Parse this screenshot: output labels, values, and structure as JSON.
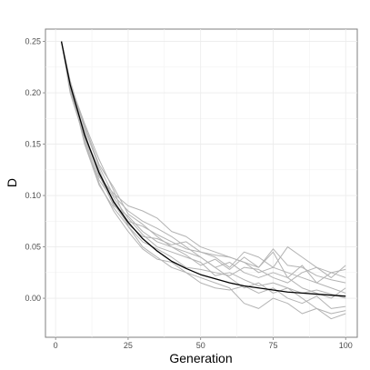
{
  "chart_data": {
    "type": "line",
    "title": "",
    "xlabel": "Generation",
    "ylabel": "D",
    "xlim": [
      -3.5,
      104
    ],
    "ylim": [
      -0.038,
      0.262
    ],
    "x_ticks": [
      0,
      25,
      50,
      75,
      100
    ],
    "x_tick_labels": [
      "0",
      "25",
      "50",
      "75",
      "100"
    ],
    "y_ticks": [
      0.0,
      0.05,
      0.1,
      0.15,
      0.2,
      0.25
    ],
    "y_tick_labels": [
      "0.00",
      "0.05",
      "0.10",
      "0.15",
      "0.20",
      "0.25"
    ],
    "grid": true,
    "legend": "none",
    "expected_curve": {
      "color": "#000000",
      "x": [
        2,
        5,
        10,
        15,
        20,
        25,
        30,
        35,
        40,
        45,
        50,
        55,
        60,
        65,
        70,
        75,
        80,
        85,
        90,
        95,
        100
      ],
      "y": [
        0.25,
        0.208,
        0.159,
        0.122,
        0.094,
        0.074,
        0.058,
        0.046,
        0.036,
        0.029,
        0.023,
        0.019,
        0.015,
        0.012,
        0.01,
        0.008,
        0.006,
        0.005,
        0.004,
        0.003,
        0.002
      ]
    },
    "simulations": {
      "color": "#b3b3b3",
      "x": [
        2,
        5,
        10,
        15,
        20,
        25,
        30,
        35,
        40,
        45,
        50,
        55,
        60,
        65,
        70,
        75,
        80,
        85,
        90,
        95,
        100
      ],
      "series": [
        {
          "values": [
            0.25,
            0.205,
            0.168,
            0.13,
            0.108,
            0.082,
            0.072,
            0.06,
            0.05,
            0.042,
            0.032,
            0.038,
            0.028,
            0.04,
            0.03,
            0.045,
            0.02,
            0.032,
            0.015,
            0.01,
            0.005
          ]
        },
        {
          "values": [
            0.25,
            0.21,
            0.16,
            0.12,
            0.09,
            0.08,
            0.065,
            0.055,
            0.05,
            0.045,
            0.04,
            0.03,
            0.02,
            0.01,
            0.015,
            0.005,
            0.01,
            0.0,
            -0.01,
            -0.015,
            -0.012
          ]
        },
        {
          "values": [
            0.25,
            0.2,
            0.155,
            0.115,
            0.095,
            0.075,
            0.07,
            0.062,
            0.055,
            0.048,
            0.045,
            0.042,
            0.04,
            0.035,
            0.03,
            0.048,
            0.032,
            0.03,
            0.022,
            0.018,
            0.015
          ]
        },
        {
          "values": [
            0.25,
            0.212,
            0.165,
            0.128,
            0.1,
            0.085,
            0.075,
            0.068,
            0.06,
            0.05,
            0.04,
            0.03,
            0.035,
            0.025,
            0.02,
            0.025,
            0.02,
            0.01,
            0.005,
            0.0,
            0.01
          ]
        },
        {
          "values": [
            0.25,
            0.208,
            0.15,
            0.11,
            0.088,
            0.07,
            0.05,
            0.04,
            0.03,
            0.025,
            0.02,
            0.015,
            0.01,
            -0.005,
            -0.01,
            0.0,
            -0.005,
            -0.015,
            -0.01,
            -0.02,
            -0.015
          ]
        },
        {
          "values": [
            0.25,
            0.206,
            0.158,
            0.125,
            0.092,
            0.072,
            0.06,
            0.058,
            0.052,
            0.055,
            0.045,
            0.04,
            0.03,
            0.045,
            0.04,
            0.03,
            0.05,
            0.04,
            0.03,
            0.02,
            0.032
          ]
        },
        {
          "values": [
            0.25,
            0.204,
            0.162,
            0.118,
            0.102,
            0.09,
            0.085,
            0.078,
            0.065,
            0.06,
            0.05,
            0.045,
            0.04,
            0.035,
            0.025,
            0.03,
            0.025,
            0.02,
            0.015,
            0.025,
            0.02
          ]
        },
        {
          "values": [
            0.25,
            0.209,
            0.17,
            0.135,
            0.105,
            0.07,
            0.055,
            0.048,
            0.04,
            0.03,
            0.028,
            0.025,
            0.022,
            0.03,
            0.028,
            0.02,
            0.015,
            0.025,
            0.03,
            0.025,
            0.028
          ]
        },
        {
          "values": [
            0.25,
            0.207,
            0.152,
            0.112,
            0.085,
            0.065,
            0.048,
            0.038,
            0.035,
            0.025,
            0.015,
            0.01,
            0.008,
            0.012,
            0.005,
            0.01,
            0.0,
            -0.005,
            0.002,
            -0.01,
            -0.008
          ]
        },
        {
          "values": [
            0.25,
            0.203,
            0.156,
            0.122,
            0.098,
            0.078,
            0.062,
            0.05,
            0.045,
            0.04,
            0.035,
            0.022,
            0.025,
            0.018,
            0.012,
            0.015,
            0.01,
            0.005,
            0.008,
            0.004,
            0.0
          ]
        }
      ]
    }
  }
}
